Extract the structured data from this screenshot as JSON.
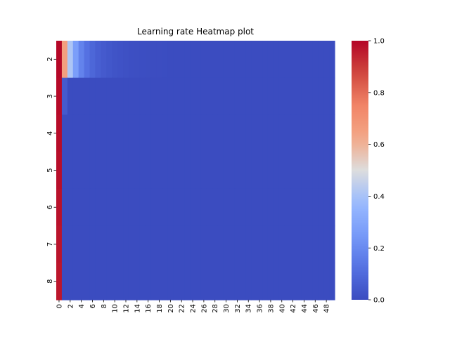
{
  "chart_data": {
    "type": "heatmap",
    "title": "Learning rate Heatmap plot",
    "xlabel": "",
    "ylabel": "",
    "x_values": [
      0,
      1,
      2,
      3,
      4,
      5,
      6,
      7,
      8,
      9,
      10,
      11,
      12,
      13,
      14,
      15,
      16,
      17,
      18,
      19,
      20,
      21,
      22,
      23,
      24,
      25,
      26,
      27,
      28,
      29,
      30,
      31,
      32,
      33,
      34,
      35,
      36,
      37,
      38,
      39,
      40,
      41,
      42,
      43,
      44,
      45,
      46,
      47,
      48,
      49
    ],
    "x_tick_labels": [
      "0",
      "2",
      "4",
      "6",
      "8",
      "10",
      "12",
      "14",
      "16",
      "18",
      "20",
      "22",
      "24",
      "26",
      "28",
      "30",
      "32",
      "34",
      "36",
      "38",
      "40",
      "42",
      "44",
      "46",
      "48"
    ],
    "y_categories": [
      "2",
      "3",
      "4",
      "5",
      "6",
      "7",
      "8"
    ],
    "value_model": "min(1, 1.2 * exp(-0.0049 * (k - 1) * base^(k^2 - k)) / (1 + 0.2 * base^(k^2 - k))) with base = 1 + x, k = row label",
    "colorbar": {
      "ticks": [
        "0.0",
        "0.2",
        "0.4",
        "0.6",
        "0.8",
        "1.0"
      ],
      "vmin": 0.0,
      "vmax": 1.0,
      "colormap": "coolwarm"
    },
    "colors": {
      "low": "#3b4cc0",
      "mid": "#dddddd",
      "high": "#b40426"
    }
  }
}
